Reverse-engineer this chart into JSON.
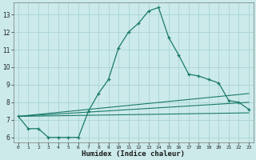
{
  "xlabel": "Humidex (Indice chaleur)",
  "background_color": "#cceaea",
  "grid_color": "#aad4d4",
  "line_color": "#1a7a6a",
  "xlim": [
    -0.5,
    23.5
  ],
  "ylim": [
    5.7,
    13.7
  ],
  "xticks": [
    0,
    1,
    2,
    3,
    4,
    5,
    6,
    7,
    8,
    9,
    10,
    11,
    12,
    13,
    14,
    15,
    16,
    17,
    18,
    19,
    20,
    21,
    22,
    23
  ],
  "xtick_labels": [
    "0",
    "1",
    "2",
    "3",
    "4",
    "5",
    "6",
    "7",
    "8",
    "9",
    "10",
    "11",
    "12",
    "13",
    "14",
    "15",
    "16",
    "17",
    "18",
    "19",
    "20",
    "21",
    "22",
    "23"
  ],
  "yticks": [
    6,
    7,
    8,
    9,
    10,
    11,
    12,
    13
  ],
  "line1_x": [
    0,
    1,
    2,
    3,
    4,
    5,
    6,
    7,
    8,
    9,
    10,
    11,
    12,
    13,
    14,
    15,
    16,
    17,
    18,
    19,
    20,
    21,
    22,
    23
  ],
  "line1_y": [
    7.2,
    6.5,
    6.5,
    6.0,
    6.0,
    6.0,
    6.0,
    7.5,
    8.5,
    9.3,
    11.1,
    12.0,
    12.5,
    13.2,
    13.4,
    11.7,
    10.7,
    9.6,
    9.5,
    9.3,
    9.1,
    8.1,
    8.0,
    7.6
  ],
  "line2_x": [
    0,
    23
  ],
  "line2_y": [
    7.2,
    8.5
  ],
  "line3_x": [
    0,
    23
  ],
  "line3_y": [
    7.2,
    8.0
  ],
  "line4_x": [
    0,
    23
  ],
  "line4_y": [
    7.2,
    7.4
  ]
}
